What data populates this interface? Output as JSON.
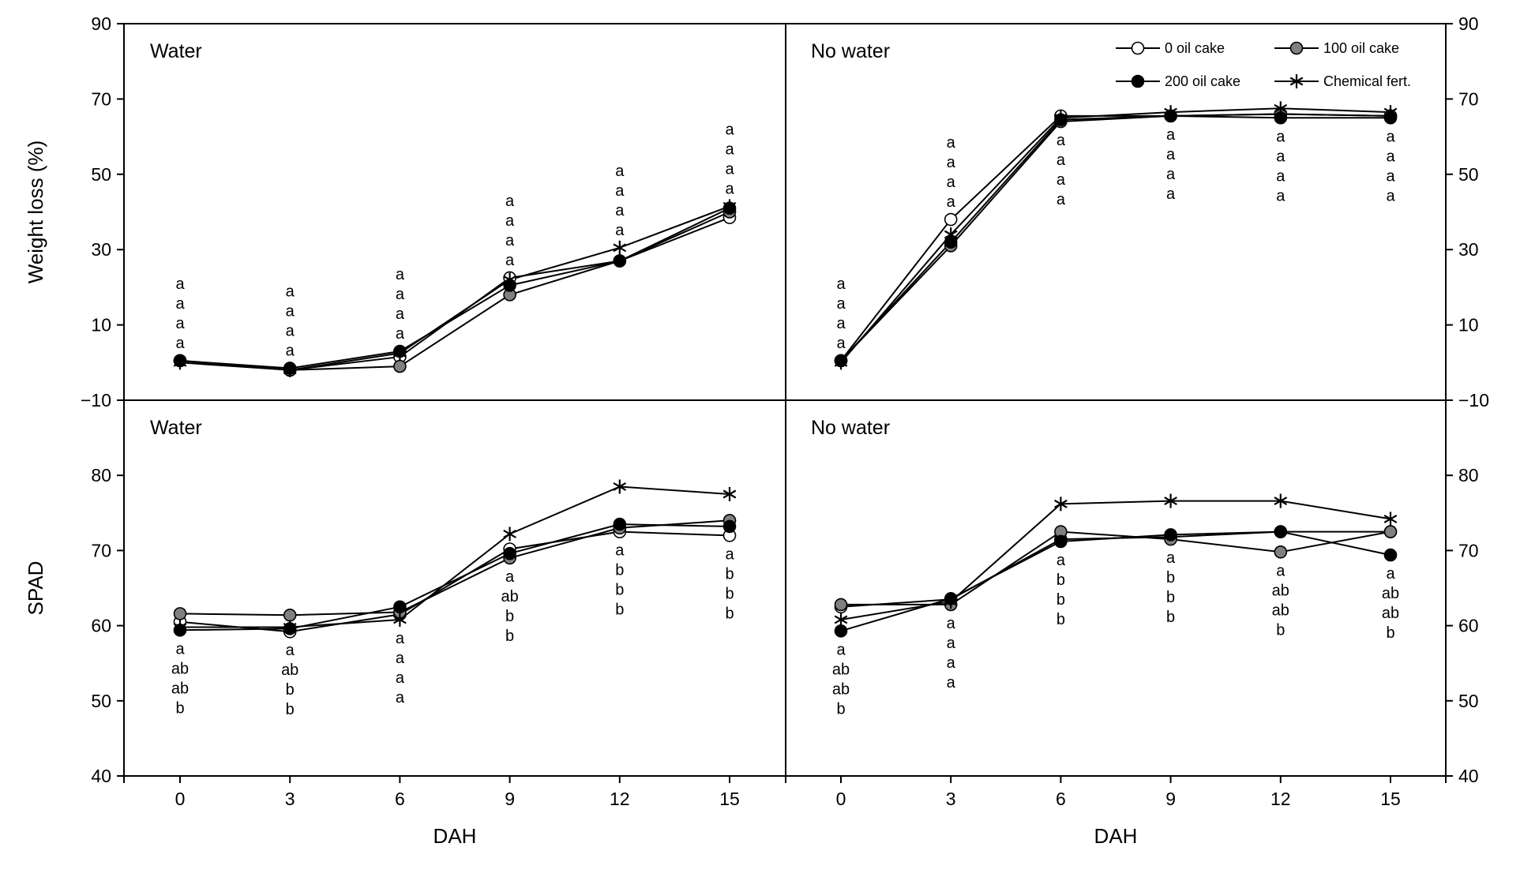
{
  "chart_data": {
    "type": "line",
    "xlabel": "DAH",
    "x": [
      0,
      3,
      6,
      9,
      12,
      15
    ],
    "series_names": [
      "0 oil cake",
      "100 oil cake",
      "200 oil cake",
      "Chemical fert."
    ],
    "rows": [
      {
        "ylabel": "Weight loss (%)",
        "ylim": [
          -10,
          90
        ],
        "yticks": [
          90,
          70,
          50,
          30,
          10,
          -10
        ],
        "ytick_labels": [
          "90",
          "70",
          "50",
          "30",
          "10",
          "−10"
        ],
        "panels": [
          {
            "title": "Water",
            "series": [
              {
                "name": "0 oil cake",
                "values": [
                  0.5,
                  -2,
                  1.5,
                  22.5,
                  27,
                  38.5
                ]
              },
              {
                "name": "100 oil cake",
                "values": [
                  0.5,
                  -2,
                  -1,
                  18,
                  27,
                  40
                ]
              },
              {
                "name": "200 oil cake",
                "values": [
                  0.5,
                  -1.5,
                  3,
                  20.5,
                  27,
                  41
                ]
              },
              {
                "name": "Chemical fert.",
                "values": [
                  0,
                  -2,
                  2.5,
                  22,
                  30.5,
                  41.5
                ]
              }
            ],
            "letters": [
              [
                "a",
                "a",
                "a",
                "a"
              ],
              [
                "a",
                "a",
                "a",
                "a"
              ],
              [
                "a",
                "a",
                "a",
                "a"
              ],
              [
                "a",
                "a",
                "a",
                "a"
              ],
              [
                "a",
                "a",
                "a",
                "a"
              ],
              [
                "a",
                "a",
                "a",
                "a"
              ]
            ],
            "letter_pos": [
              "above",
              "above",
              "above",
              "above",
              "above",
              "above"
            ]
          },
          {
            "title": "No water",
            "series": [
              {
                "name": "0 oil cake",
                "values": [
                  0.5,
                  38,
                  65.5,
                  65.5,
                  66,
                  65.5
                ]
              },
              {
                "name": "100 oil cake",
                "values": [
                  0.5,
                  31,
                  64,
                  65.5,
                  66,
                  65.5
                ]
              },
              {
                "name": "200 oil cake",
                "values": [
                  0.5,
                  32,
                  64.5,
                  65.5,
                  65,
                  65
                ]
              },
              {
                "name": "Chemical fert.",
                "values": [
                  0,
                  34,
                  65,
                  66.5,
                  67.5,
                  66.5
                ]
              }
            ],
            "letters": [
              [
                "a",
                "a",
                "a",
                "a"
              ],
              [
                "a",
                "a",
                "a",
                "a"
              ],
              [
                "a",
                "a",
                "a",
                "a"
              ],
              [
                "a",
                "a",
                "a",
                "a"
              ],
              [
                "a",
                "a",
                "a",
                "a"
              ],
              [
                "a",
                "a",
                "a",
                "a"
              ]
            ],
            "letter_pos": [
              "above",
              "above",
              "below",
              "below",
              "below",
              "below"
            ]
          }
        ]
      },
      {
        "ylabel": "SPAD",
        "ylim": [
          40,
          90
        ],
        "yticks": [
          80,
          70,
          60,
          50,
          40
        ],
        "ytick_labels": [
          "80",
          "70",
          "60",
          "50",
          "40"
        ],
        "panels": [
          {
            "title": "Water",
            "series": [
              {
                "name": "0 oil cake",
                "values": [
                  60.5,
                  59.2,
                  61.5,
                  70.2,
                  72.5,
                  72
                ]
              },
              {
                "name": "100 oil cake",
                "values": [
                  61.6,
                  61.4,
                  61.8,
                  69,
                  73,
                  74
                ]
              },
              {
                "name": "200 oil cake",
                "values": [
                  59.4,
                  59.6,
                  62.5,
                  69.6,
                  73.5,
                  73.2
                ]
              },
              {
                "name": "Chemical fert.",
                "values": [
                  59.8,
                  59.8,
                  60.8,
                  72.2,
                  78.5,
                  77.5
                ]
              }
            ],
            "letters": [
              [
                "a",
                "ab",
                "ab",
                "b"
              ],
              [
                "a",
                "ab",
                "b",
                "b"
              ],
              [
                "a",
                "a",
                "a",
                "a"
              ],
              [
                "a",
                "ab",
                "b",
                "b"
              ],
              [
                "a",
                "b",
                "b",
                "b"
              ],
              [
                "a",
                "b",
                "b",
                "b"
              ]
            ],
            "letter_pos": [
              "below",
              "below",
              "below",
              "below",
              "below",
              "below"
            ]
          },
          {
            "title": "No water",
            "series": [
              {
                "name": "0 oil cake",
                "values": [
                  62.5,
                  63.5,
                  71.5,
                  71.8,
                  72.5,
                  72.5
                ]
              },
              {
                "name": "100 oil cake",
                "values": [
                  62.8,
                  62.8,
                  72.5,
                  71.5,
                  69.8,
                  72.5
                ]
              },
              {
                "name": "200 oil cake",
                "values": [
                  59.3,
                  63.6,
                  71.2,
                  72.1,
                  72.5,
                  69.4
                ]
              },
              {
                "name": "Chemical fert.",
                "values": [
                  60.8,
                  63.2,
                  76.2,
                  76.6,
                  76.6,
                  74.2
                ]
              }
            ],
            "letters": [
              [
                "a",
                "ab",
                "ab",
                "b"
              ],
              [
                "a",
                "a",
                "a",
                "a"
              ],
              [
                "a",
                "b",
                "b",
                "b"
              ],
              [
                "a",
                "b",
                "b",
                "b"
              ],
              [
                "a",
                "ab",
                "ab",
                "b"
              ],
              [
                "a",
                "ab",
                "ab",
                "b"
              ]
            ],
            "letter_pos": [
              "below",
              "below",
              "below",
              "below",
              "below",
              "below"
            ]
          }
        ]
      }
    ],
    "legend": {
      "placement": "top-right of upper right panel",
      "entries": [
        {
          "label": "0 oil cake",
          "marker": "open-circle"
        },
        {
          "label": "100 oil cake",
          "marker": "grey-circle"
        },
        {
          "label": "200 oil cake",
          "marker": "black-circle"
        },
        {
          "label": "Chemical fert.",
          "marker": "asterisk"
        }
      ]
    },
    "marker_colors": {
      "0 oil cake": "#ffffff",
      "100 oil cake": "#808080",
      "200 oil cake": "#000000",
      "Chemical fert.": "#000000"
    }
  }
}
